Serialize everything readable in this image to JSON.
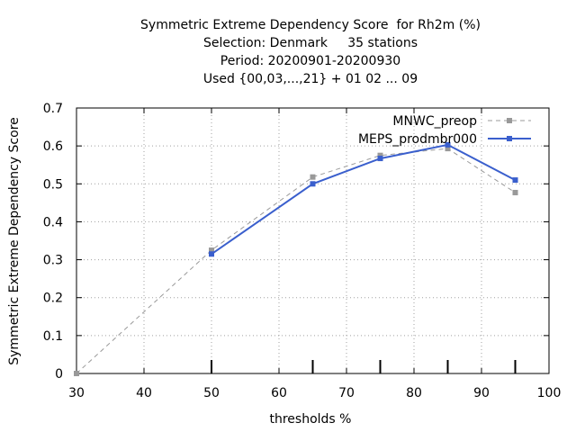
{
  "chart_data": {
    "type": "line",
    "title_lines": [
      "Symmetric Extreme Dependency Score  for Rh2m (%)",
      "Selection: Denmark     35 stations",
      "Period: 20200901-20200930",
      "Used {00,03,...,21} + 01 02 ... 09"
    ],
    "xlabel": "thresholds %",
    "ylabel": "Symmetric Extreme Dependency Score",
    "xlim": [
      30,
      100
    ],
    "ylim": [
      0,
      0.7
    ],
    "xticks": [
      30,
      40,
      50,
      60,
      70,
      80,
      90,
      100
    ],
    "yticks": [
      0,
      0.1,
      0.2,
      0.3,
      0.4,
      0.5,
      0.6,
      0.7
    ],
    "grid": true,
    "legend_position": "top-right",
    "threshold_markers": [
      50,
      65,
      75,
      85,
      95
    ],
    "series": [
      {
        "name": "MNWC_preop",
        "color": "#999999",
        "dashed": true,
        "x": [
          30,
          50,
          65,
          75,
          85,
          95
        ],
        "y": [
          0.0,
          0.325,
          0.518,
          0.575,
          0.593,
          0.477
        ]
      },
      {
        "name": "MEPS_prodmbr000",
        "color": "#3a5fcd",
        "dashed": false,
        "x": [
          50,
          65,
          75,
          85,
          95
        ],
        "y": [
          0.315,
          0.5,
          0.567,
          0.603,
          0.51
        ]
      }
    ]
  }
}
